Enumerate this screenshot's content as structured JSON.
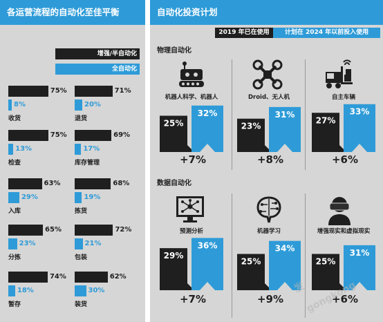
{
  "left_panel": {
    "title": "各运营流程的自动化至佳平衡",
    "legend": {
      "series1": "增强/半自动化",
      "series2": "全自动化"
    }
  },
  "right_panel": {
    "title": "自动化投资计划",
    "tab_2019": "2019 年已在使用",
    "tab_2024": "计划在 2024 年以前投入使用",
    "physical_title": "物理自动化",
    "data_title": "数据自动化"
  },
  "watermark": {
    "line1": "发",
    "line2": "gongkong"
  },
  "colors": {
    "black": "#1f1f1f",
    "blue": "#2e9bd8",
    "panel": "#d6d6d6"
  },
  "chart_data": [
    {
      "type": "bar",
      "title": "各运营流程的自动化至佳平衡",
      "categories": [
        "收货",
        "退货",
        "检查",
        "库存管理",
        "入库",
        "拣货",
        "分拣",
        "包装",
        "暂存",
        "装货"
      ],
      "series": [
        {
          "name": "增强/半自动化",
          "values": [
            75,
            71,
            75,
            69,
            63,
            68,
            65,
            72,
            74,
            62
          ]
        },
        {
          "name": "全自动化",
          "values": [
            8,
            20,
            13,
            17,
            29,
            19,
            23,
            21,
            18,
            30
          ]
        }
      ],
      "legend": "top-right"
    },
    {
      "type": "bar",
      "title": "自动化投资计划",
      "categories": [
        "机器人科学、机器人",
        "Droid、无人机",
        "自主车辆",
        "预测分析",
        "机器学习",
        "增强现实和虚拟现实"
      ],
      "groups": [
        "物理自动化",
        "物理自动化",
        "物理自动化",
        "数据自动化",
        "数据自动化",
        "数据自动化"
      ],
      "icons": [
        "robot-icon",
        "drone-icon",
        "forklift-icon",
        "network-monitor-icon",
        "brain-icon",
        "vr-headset-icon"
      ],
      "series": [
        {
          "name": "2019 年已在使用",
          "values": [
            25,
            23,
            27,
            29,
            25,
            25
          ]
        },
        {
          "name": "计划在 2024 年以前投入使用",
          "values": [
            32,
            31,
            33,
            36,
            34,
            31
          ]
        }
      ],
      "deltas": [
        "+7%",
        "+8%",
        "+6%",
        "+7%",
        "+9%",
        "+6%"
      ]
    }
  ]
}
